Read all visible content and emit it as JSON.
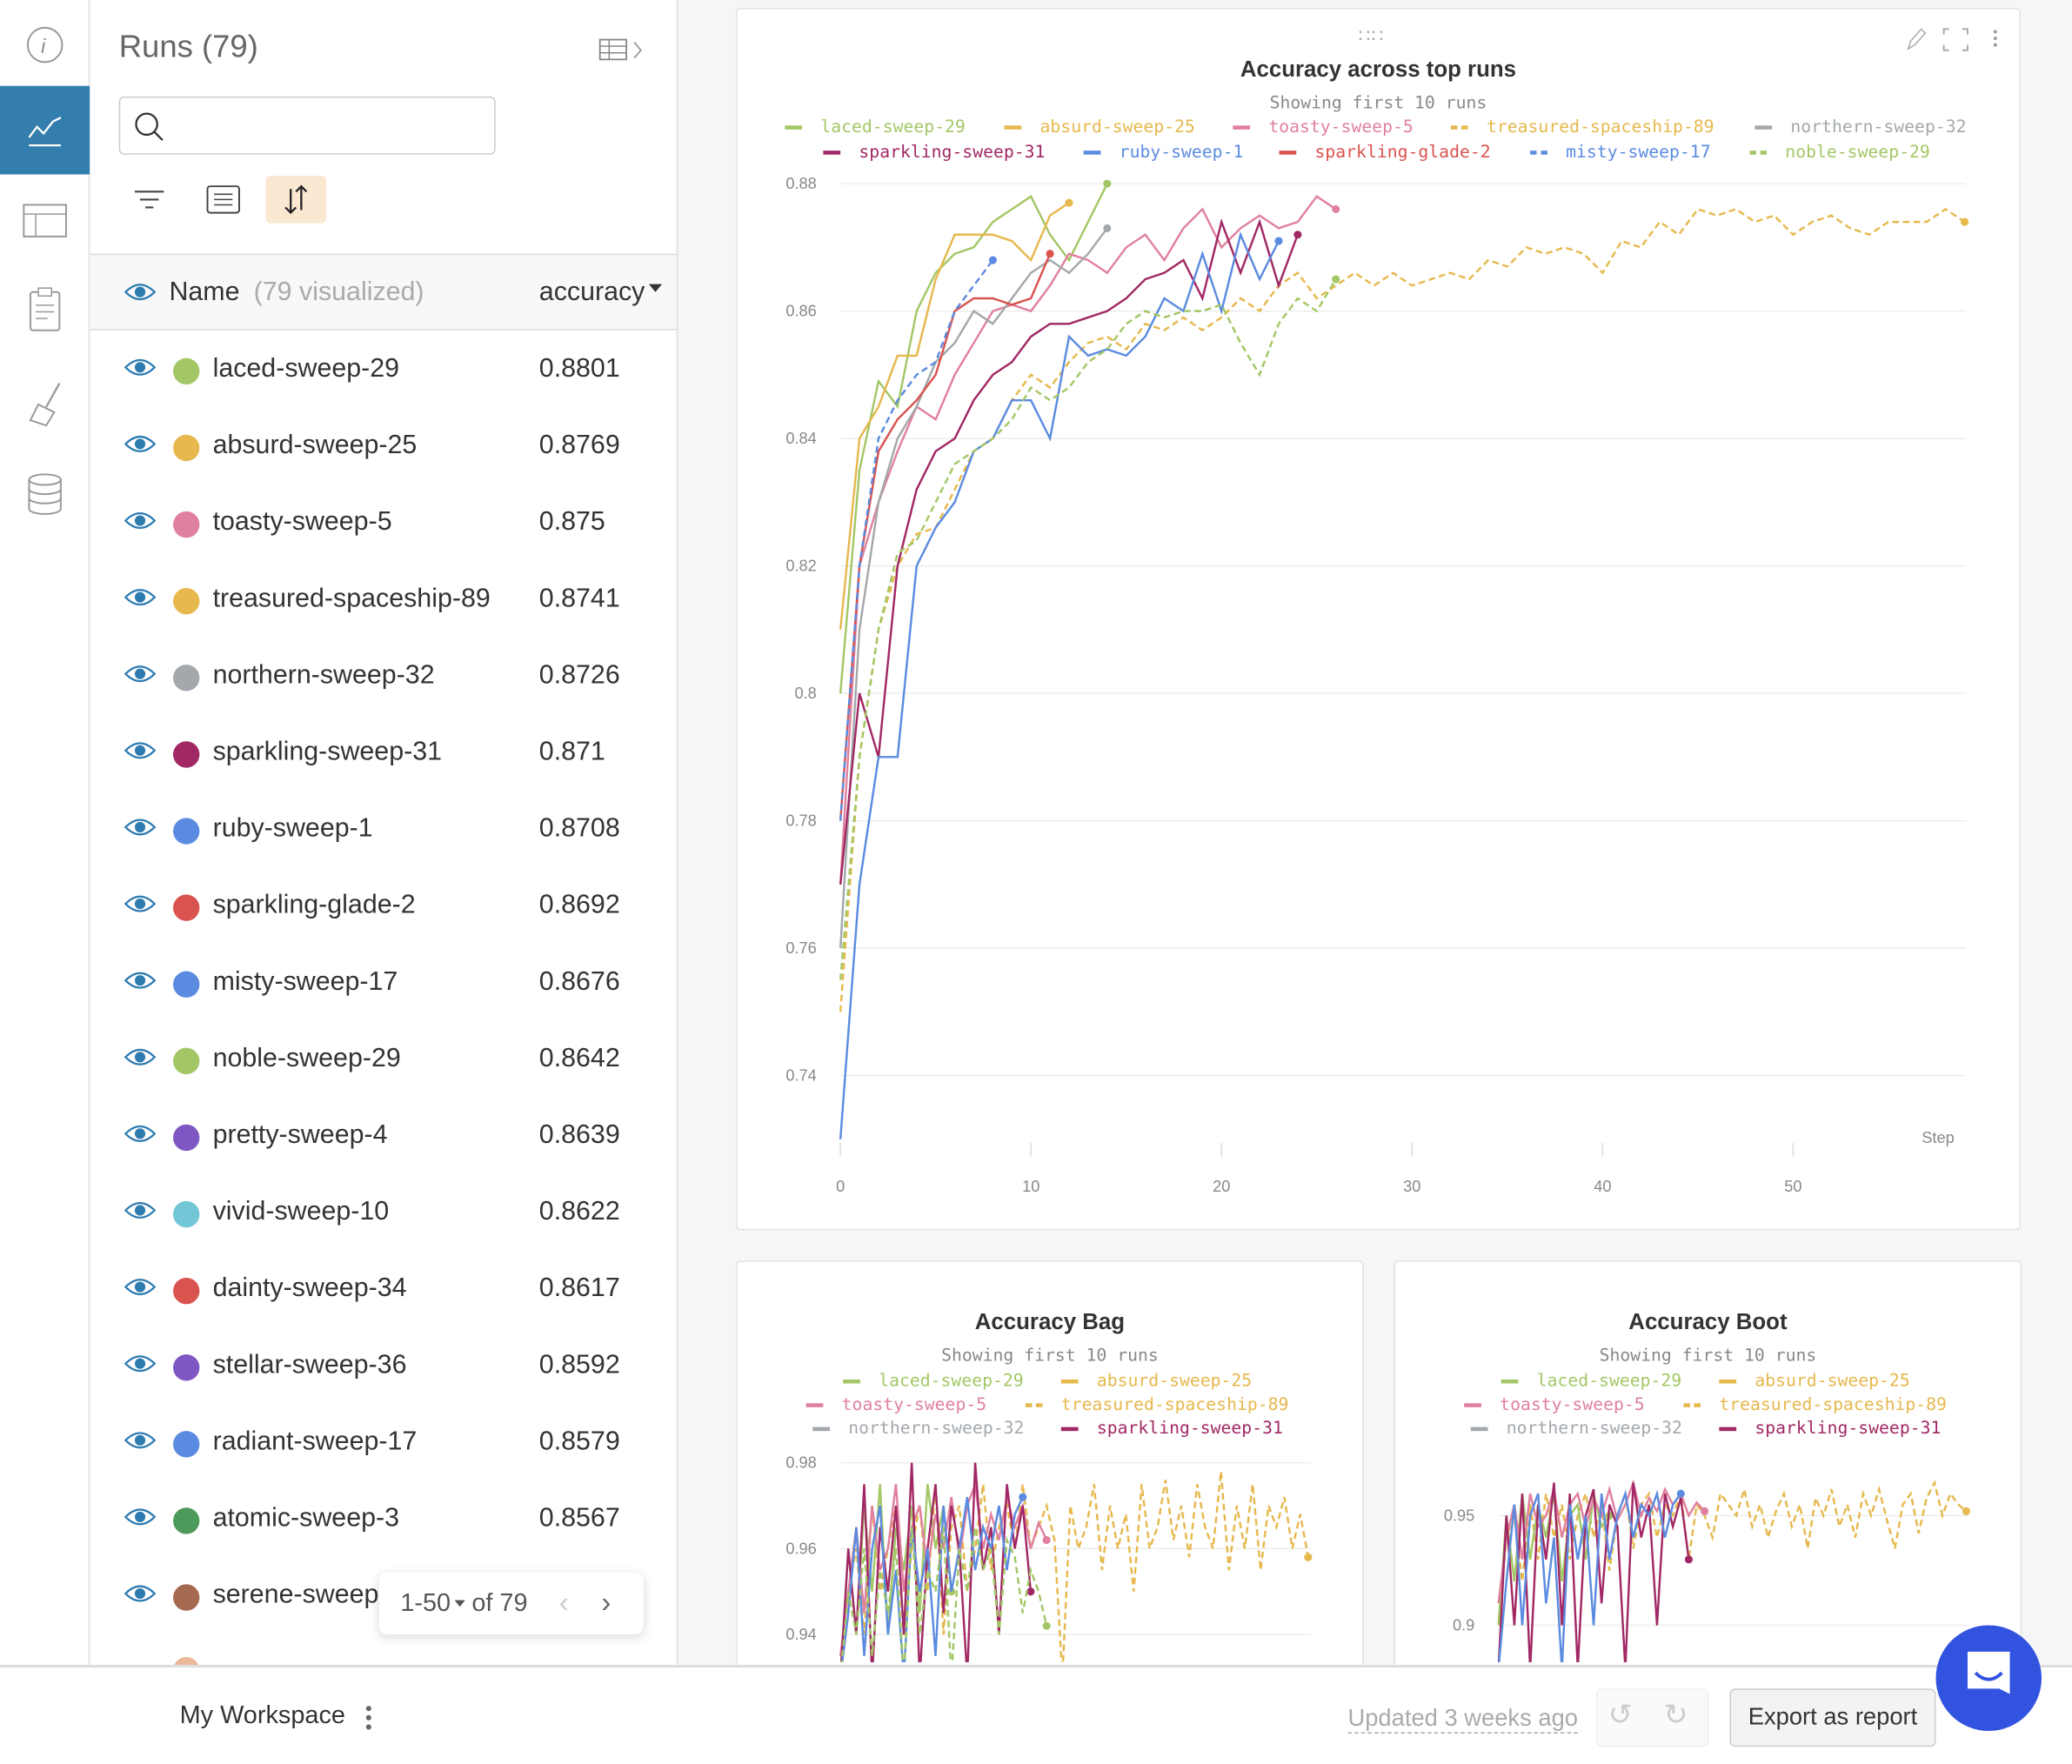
{
  "runs_panel": {
    "title": "Runs (79)",
    "search_placeholder": "",
    "header_name": "Name",
    "header_visualized": "(79 visualized)",
    "header_metric": "accuracy",
    "rows": [
      {
        "name": "laced-sweep-29",
        "value": "0.8801",
        "color": "#A3C766"
      },
      {
        "name": "absurd-sweep-25",
        "value": "0.8769",
        "color": "#E6B84D"
      },
      {
        "name": "toasty-sweep-5",
        "value": "0.875",
        "color": "#E0809F"
      },
      {
        "name": "treasured-spaceship-89",
        "value": "0.8741",
        "color": "#E6B84D"
      },
      {
        "name": "northern-sweep-32",
        "value": "0.8726",
        "color": "#A3A8AD"
      },
      {
        "name": "sparkling-sweep-31",
        "value": "0.871",
        "color": "#A12864"
      },
      {
        "name": "ruby-sweep-1",
        "value": "0.8708",
        "color": "#5B8BE0"
      },
      {
        "name": "sparkling-glade-2",
        "value": "0.8692",
        "color": "#D9534F"
      },
      {
        "name": "misty-sweep-17",
        "value": "0.8676",
        "color": "#5B8BE0"
      },
      {
        "name": "noble-sweep-29",
        "value": "0.8642",
        "color": "#A3C766"
      },
      {
        "name": "pretty-sweep-4",
        "value": "0.8639",
        "color": "#7E57C2"
      },
      {
        "name": "vivid-sweep-10",
        "value": "0.8622",
        "color": "#72C6D6"
      },
      {
        "name": "dainty-sweep-34",
        "value": "0.8617",
        "color": "#D9534F"
      },
      {
        "name": "stellar-sweep-36",
        "value": "0.8592",
        "color": "#7E57C2"
      },
      {
        "name": "radiant-sweep-17",
        "value": "0.8579",
        "color": "#5B8BE0"
      },
      {
        "name": "atomic-sweep-3",
        "value": "0.8567",
        "color": "#4E9A5A"
      },
      {
        "name": "serene-sweep-",
        "value": "",
        "color": "#A5694F"
      }
    ],
    "pagination": {
      "range": "1-50",
      "of": "of 79"
    }
  },
  "footer": {
    "workspace": "My Workspace",
    "updated": "Updated 3 weeks ago",
    "export": "Export as report"
  },
  "chart_data": [
    {
      "type": "line",
      "title": "Accuracy across top runs",
      "subtitle": "Showing first 10 runs",
      "xlabel": "Step",
      "ylabel": "",
      "xlim": [
        0,
        59
      ],
      "ylim": [
        0.73,
        0.885
      ],
      "xticks": [
        0,
        10,
        20,
        30,
        40,
        50
      ],
      "yticks": [
        0.74,
        0.76,
        0.78,
        0.8,
        0.82,
        0.84,
        0.86,
        0.88
      ],
      "ytick_labels": [
        "0.74",
        "0.76",
        "0.78",
        "0.8",
        "0.82",
        "0.84",
        "0.86",
        "0.88"
      ],
      "series": [
        {
          "name": "laced-sweep-29",
          "color": "#A3C766",
          "dash": false,
          "values": [
            0.8,
            0.835,
            0.849,
            0.845,
            0.86,
            0.866,
            0.869,
            0.87,
            0.874,
            0.876,
            0.878,
            0.872,
            0.868,
            0.874,
            0.88
          ]
        },
        {
          "name": "absurd-sweep-25",
          "color": "#E6B84D",
          "dash": false,
          "values": [
            0.81,
            0.84,
            0.845,
            0.853,
            0.853,
            0.865,
            0.872,
            0.872,
            0.872,
            0.871,
            0.868,
            0.875,
            0.877
          ]
        },
        {
          "name": "toasty-sweep-5",
          "color": "#E0809F",
          "dash": false,
          "values": [
            0.77,
            0.82,
            0.83,
            0.838,
            0.845,
            0.843,
            0.85,
            0.855,
            0.86,
            0.861,
            0.86,
            0.864,
            0.869,
            0.868,
            0.866,
            0.87,
            0.872,
            0.868,
            0.873,
            0.876,
            0.87,
            0.873,
            0.875,
            0.873,
            0.874,
            0.878,
            0.876
          ]
        },
        {
          "name": "treasured-spaceship-89",
          "color": "#E6B84D",
          "dash": true,
          "values": [
            0.75,
            0.79,
            0.81,
            0.82,
            0.825,
            0.826,
            0.832,
            0.838,
            0.84,
            0.846,
            0.85,
            0.848,
            0.852,
            0.855,
            0.856,
            0.854,
            0.858,
            0.857,
            0.859,
            0.857,
            0.859,
            0.862,
            0.86,
            0.864,
            0.866,
            0.862,
            0.864,
            0.866,
            0.864,
            0.866,
            0.864,
            0.865,
            0.866,
            0.865,
            0.868,
            0.867,
            0.87,
            0.869,
            0.87,
            0.869,
            0.866,
            0.871,
            0.87,
            0.874,
            0.872,
            0.876,
            0.875,
            0.876,
            0.874,
            0.875,
            0.872,
            0.874,
            0.875,
            0.873,
            0.872,
            0.874,
            0.874,
            0.874,
            0.876,
            0.874
          ]
        },
        {
          "name": "northern-sweep-32",
          "color": "#A3A8AD",
          "dash": false,
          "values": [
            0.76,
            0.81,
            0.83,
            0.84,
            0.845,
            0.852,
            0.855,
            0.86,
            0.858,
            0.862,
            0.866,
            0.868,
            0.866,
            0.869,
            0.873
          ]
        },
        {
          "name": "sparkling-sweep-31",
          "color": "#A12864",
          "dash": false,
          "values": [
            0.77,
            0.8,
            0.79,
            0.82,
            0.832,
            0.838,
            0.84,
            0.846,
            0.85,
            0.852,
            0.856,
            0.858,
            0.858,
            0.859,
            0.86,
            0.862,
            0.865,
            0.866,
            0.868,
            0.862,
            0.874,
            0.866,
            0.874,
            0.864,
            0.872
          ]
        },
        {
          "name": "ruby-sweep-1",
          "color": "#5B8BE0",
          "dash": false,
          "values": [
            0.73,
            0.77,
            0.79,
            0.79,
            0.82,
            0.826,
            0.83,
            0.838,
            0.84,
            0.846,
            0.846,
            0.84,
            0.856,
            0.853,
            0.854,
            0.853,
            0.856,
            0.862,
            0.86,
            0.869,
            0.86,
            0.872,
            0.865,
            0.871
          ]
        },
        {
          "name": "sparkling-glade-2",
          "color": "#D9534F",
          "dash": false,
          "values": [
            0.78,
            0.82,
            0.838,
            0.843,
            0.846,
            0.85,
            0.86,
            0.862,
            0.862,
            0.861,
            0.862,
            0.869
          ]
        },
        {
          "name": "misty-sweep-17",
          "color": "#5B8BE0",
          "dash": true,
          "values": [
            0.78,
            0.82,
            0.84,
            0.846,
            0.85,
            0.852,
            0.86,
            0.864,
            0.868
          ]
        },
        {
          "name": "noble-sweep-29",
          "color": "#A3C766",
          "dash": true,
          "values": [
            0.755,
            0.79,
            0.81,
            0.822,
            0.824,
            0.83,
            0.836,
            0.838,
            0.84,
            0.843,
            0.848,
            0.846,
            0.848,
            0.852,
            0.854,
            0.858,
            0.86,
            0.859,
            0.86,
            0.86,
            0.861,
            0.855,
            0.85,
            0.858,
            0.862,
            0.86,
            0.865
          ]
        }
      ]
    },
    {
      "type": "line",
      "title": "Accuracy Bag",
      "subtitle": "Showing first 10 runs",
      "xlim": [
        0,
        59
      ],
      "ylim": [
        0.93,
        0.985
      ],
      "yticks": [
        0.94,
        0.96,
        0.98
      ],
      "ytick_labels": [
        "0.94",
        "0.96",
        "0.98"
      ],
      "legend": [
        "laced-sweep-29",
        "absurd-sweep-25",
        "toasty-sweep-5",
        "treasured-spaceship-89",
        "northern-sweep-32",
        "sparkling-sweep-31"
      ],
      "series": [
        {
          "name": "treasured-spaceship-89",
          "color": "#E6B84D",
          "dash": true,
          "values": [
            0.93,
            0.95,
            0.96,
            0.94,
            0.97,
            0.95,
            0.96,
            0.97,
            0.94,
            0.96,
            0.97,
            0.95,
            0.975,
            0.94,
            0.965,
            0.97,
            0.95,
            0.96,
            0.975,
            0.955,
            0.965,
            0.97,
            0.96,
            0.975,
            0.96,
            0.965,
            0.97,
            0.962,
            0.93,
            0.97,
            0.96,
            0.965,
            0.975,
            0.955,
            0.97,
            0.96,
            0.968,
            0.95,
            0.975,
            0.96,
            0.965,
            0.976,
            0.962,
            0.97,
            0.958,
            0.975,
            0.965,
            0.96,
            0.978,
            0.955,
            0.97,
            0.96,
            0.975,
            0.955,
            0.97,
            0.965,
            0.972,
            0.96,
            0.968,
            0.958
          ]
        },
        {
          "name": "laced-sweep-29",
          "color": "#A3C766",
          "dash": false,
          "values": [
            0.93,
            0.96,
            0.94,
            0.97,
            0.95,
            0.975,
            0.94,
            0.965,
            0.955,
            0.97,
            0.945,
            0.975,
            0.96,
            0.97,
            0.95
          ]
        },
        {
          "name": "toasty-sweep-5",
          "color": "#E0809F",
          "dash": false,
          "values": [
            0.935,
            0.95,
            0.965,
            0.945,
            0.97,
            0.955,
            0.96,
            0.975,
            0.95,
            0.965,
            0.97,
            0.955,
            0.968,
            0.96,
            0.972,
            0.958,
            0.97,
            0.975,
            0.96,
            0.968,
            0.962,
            0.972,
            0.965,
            0.97,
            0.96,
            0.966,
            0.962
          ]
        },
        {
          "name": "sparkling-sweep-31",
          "color": "#A12864",
          "dash": false,
          "values": [
            0.93,
            0.96,
            0.94,
            0.975,
            0.93,
            0.965,
            0.95,
            0.97,
            0.94,
            0.98,
            0.93,
            0.96,
            0.975,
            0.945,
            0.97,
            0.96,
            0.93,
            0.98,
            0.955,
            0.965,
            0.94,
            0.975,
            0.96,
            0.97,
            0.95
          ]
        },
        {
          "name": "ruby-sweep-1",
          "color": "#5B8BE0",
          "dash": false,
          "values": [
            0.93,
            0.945,
            0.965,
            0.935,
            0.96,
            0.97,
            0.94,
            0.955,
            0.93,
            0.965,
            0.95,
            0.96,
            0.935,
            0.97,
            0.95,
            0.96,
            0.972,
            0.955,
            0.965,
            0.96,
            0.97,
            0.955,
            0.968,
            0.972
          ]
        },
        {
          "name": "noble-sweep-29",
          "color": "#A3C766",
          "dash": true,
          "values": [
            0.93,
            0.95,
            0.94,
            0.96,
            0.935,
            0.955,
            0.945,
            0.96,
            0.93,
            0.965,
            0.94,
            0.955,
            0.95,
            0.965,
            0.93,
            0.96,
            0.95,
            0.965,
            0.955,
            0.96,
            0.94,
            0.962,
            0.958,
            0.945,
            0.955,
            0.95,
            0.942
          ]
        }
      ]
    },
    {
      "type": "line",
      "title": "Accuracy Boot",
      "subtitle": "Showing first 10 runs",
      "xlim": [
        0,
        59
      ],
      "ylim": [
        0.88,
        0.97
      ],
      "yticks": [
        0.9,
        0.95
      ],
      "ytick_labels": [
        "0.9",
        "0.95"
      ],
      "legend": [
        "laced-sweep-29",
        "absurd-sweep-25",
        "toasty-sweep-5",
        "treasured-spaceship-89",
        "northern-sweep-32",
        "sparkling-sweep-31"
      ],
      "series": [
        {
          "name": "treasured-spaceship-89",
          "color": "#E6B84D",
          "dash": true,
          "values": [
            0.9,
            0.94,
            0.95,
            0.92,
            0.955,
            0.93,
            0.96,
            0.94,
            0.955,
            0.93,
            0.95,
            0.96,
            0.94,
            0.955,
            0.925,
            0.95,
            0.96,
            0.935,
            0.955,
            0.96,
            0.94,
            0.955,
            0.95,
            0.96,
            0.93,
            0.955,
            0.95,
            0.94,
            0.96,
            0.955,
            0.95,
            0.962,
            0.945,
            0.955,
            0.94,
            0.952,
            0.96,
            0.945,
            0.955,
            0.935,
            0.958,
            0.95,
            0.962,
            0.945,
            0.955,
            0.94,
            0.96,
            0.95,
            0.962,
            0.948,
            0.935,
            0.955,
            0.96,
            0.942,
            0.958,
            0.965,
            0.95,
            0.96,
            0.955,
            0.952
          ]
        },
        {
          "name": "laced-sweep-29",
          "color": "#A3C766",
          "dash": false,
          "values": [
            0.9,
            0.95,
            0.92,
            0.96,
            0.93,
            0.955,
            0.94,
            0.96,
            0.92,
            0.95,
            0.955,
            0.93,
            0.96,
            0.945,
            0.95
          ]
        },
        {
          "name": "toasty-sweep-5",
          "color": "#E0809F",
          "dash": false,
          "values": [
            0.91,
            0.94,
            0.955,
            0.93,
            0.96,
            0.945,
            0.95,
            0.962,
            0.94,
            0.955,
            0.96,
            0.945,
            0.958,
            0.95,
            0.962,
            0.948,
            0.955,
            0.965,
            0.95,
            0.958,
            0.952,
            0.962,
            0.955,
            0.96,
            0.95,
            0.956,
            0.952
          ]
        },
        {
          "name": "sparkling-sweep-31",
          "color": "#A12864",
          "dash": false,
          "values": [
            0.88,
            0.95,
            0.9,
            0.96,
            0.88,
            0.955,
            0.93,
            0.965,
            0.9,
            0.96,
            0.88,
            0.95,
            0.962,
            0.91,
            0.955,
            0.945,
            0.88,
            0.965,
            0.94,
            0.955,
            0.9,
            0.96,
            0.945,
            0.958,
            0.93
          ]
        },
        {
          "name": "ruby-sweep-1",
          "color": "#5B8BE0",
          "dash": false,
          "values": [
            0.88,
            0.92,
            0.955,
            0.9,
            0.95,
            0.96,
            0.91,
            0.94,
            0.88,
            0.955,
            0.93,
            0.95,
            0.9,
            0.96,
            0.93,
            0.95,
            0.96,
            0.94,
            0.955,
            0.95,
            0.96,
            0.94,
            0.955,
            0.96
          ]
        }
      ]
    }
  ]
}
